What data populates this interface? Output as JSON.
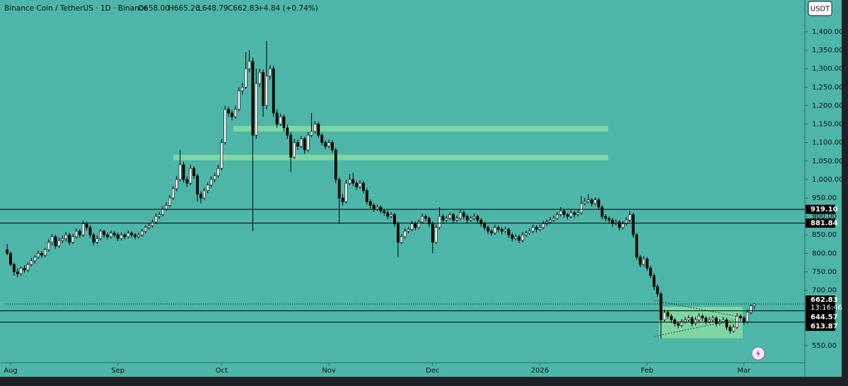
{
  "chart_data": {
    "type": "candlestick",
    "title": "Binance Coin / TetherUS · 1D · Binance",
    "ohlc_header": [
      "O658.00",
      "H665.26",
      "L648.79",
      "C662.83",
      "+4.84 (+0.74%)"
    ],
    "currency": "USDT",
    "ylim": [
      504,
      1486
    ],
    "yticks": [
      {
        "value": 550,
        "label": "550.00"
      },
      {
        "value": 600,
        "label": "600.00"
      },
      {
        "value": 650,
        "label": "650.00"
      },
      {
        "value": 700,
        "label": "700.00"
      },
      {
        "value": 750,
        "label": "750.00"
      },
      {
        "value": 800,
        "label": "800.00"
      },
      {
        "value": 850,
        "label": "850.00"
      },
      {
        "value": 900,
        "label": "900.00"
      },
      {
        "value": 950,
        "label": "950.00"
      },
      {
        "value": 1000,
        "label": "1,000.00"
      },
      {
        "value": 1050,
        "label": "1,050.00"
      },
      {
        "value": 1100,
        "label": "1,100.00"
      },
      {
        "value": 1150,
        "label": "1,150.00"
      },
      {
        "value": 1200,
        "label": "1,200.00"
      },
      {
        "value": 1250,
        "label": "1,250.00"
      },
      {
        "value": 1300,
        "label": "1,300.00"
      },
      {
        "value": 1350,
        "label": "1,350.00"
      },
      {
        "value": 1400,
        "label": "1,400.00"
      }
    ],
    "xlim": [
      -0.43,
      230.6
    ],
    "xticks": [
      {
        "value": 1,
        "label": "Aug"
      },
      {
        "value": 32,
        "label": "Sep"
      },
      {
        "value": 62,
        "label": "Oct"
      },
      {
        "value": 93,
        "label": "Nov"
      },
      {
        "value": 123,
        "label": "Dec"
      },
      {
        "value": 154,
        "label": "2026"
      },
      {
        "value": 185,
        "label": "Feb"
      },
      {
        "value": 213,
        "label": "Mar"
      }
    ],
    "levels": [
      {
        "value": 919.1,
        "label": "919.10"
      },
      {
        "value": 881.84,
        "label": "881.84"
      },
      {
        "value": 644.57,
        "label": "644.57"
      },
      {
        "value": 613.87,
        "label": "613.87"
      }
    ],
    "last_price": {
      "value": 662.83,
      "label": "662.83"
    },
    "countdown": "13:16:46",
    "zones": [
      {
        "low": 1130,
        "high": 1145
      },
      {
        "low": 1052,
        "high": 1067
      },
      {
        "low": 570,
        "high": 655
      }
    ],
    "up_color": "#ffffff",
    "down_color": "#000000",
    "candles": [
      [
        810,
        825,
        795,
        800
      ],
      [
        800,
        805,
        765,
        770
      ],
      [
        770,
        775,
        740,
        750
      ],
      [
        750,
        760,
        735,
        745
      ],
      [
        745,
        765,
        740,
        760
      ],
      [
        760,
        768,
        748,
        755
      ],
      [
        755,
        775,
        750,
        770
      ],
      [
        770,
        788,
        765,
        780
      ],
      [
        780,
        795,
        772,
        790
      ],
      [
        790,
        808,
        785,
        800
      ],
      [
        800,
        806,
        788,
        795
      ],
      [
        795,
        815,
        790,
        810
      ],
      [
        810,
        838,
        805,
        830
      ],
      [
        830,
        852,
        822,
        845
      ],
      [
        845,
        850,
        812,
        820
      ],
      [
        820,
        842,
        815,
        835
      ],
      [
        835,
        848,
        828,
        840
      ],
      [
        840,
        858,
        832,
        850
      ],
      [
        850,
        855,
        822,
        830
      ],
      [
        830,
        852,
        825,
        845
      ],
      [
        845,
        868,
        840,
        860
      ],
      [
        860,
        866,
        842,
        850
      ],
      [
        850,
        888,
        845,
        880
      ],
      [
        880,
        886,
        862,
        870
      ],
      [
        870,
        876,
        842,
        850
      ],
      [
        850,
        856,
        822,
        830
      ],
      [
        830,
        848,
        825,
        840
      ],
      [
        840,
        866,
        835,
        860
      ],
      [
        860,
        864,
        842,
        850
      ],
      [
        850,
        856,
        838,
        845
      ],
      [
        845,
        862,
        840,
        855
      ],
      [
        855,
        860,
        843,
        850
      ],
      [
        850,
        856,
        833,
        840
      ],
      [
        840,
        857,
        835,
        850
      ],
      [
        850,
        855,
        838,
        845
      ],
      [
        845,
        862,
        840,
        855
      ],
      [
        855,
        860,
        843,
        850
      ],
      [
        850,
        855,
        838,
        845
      ],
      [
        845,
        856,
        840,
        850
      ],
      [
        850,
        866,
        845,
        860
      ],
      [
        860,
        877,
        854,
        870
      ],
      [
        870,
        882,
        864,
        875
      ],
      [
        875,
        892,
        870,
        885
      ],
      [
        885,
        908,
        880,
        900
      ],
      [
        900,
        912,
        894,
        905
      ],
      [
        905,
        928,
        900,
        920
      ],
      [
        920,
        938,
        915,
        930
      ],
      [
        930,
        958,
        925,
        950
      ],
      [
        950,
        982,
        945,
        975
      ],
      [
        975,
        1010,
        968,
        1000
      ],
      [
        1000,
        1080,
        995,
        1040
      ],
      [
        1040,
        1048,
        992,
        1000
      ],
      [
        1000,
        1008,
        980,
        990
      ],
      [
        990,
        1040,
        985,
        1030
      ],
      [
        1030,
        1036,
        1002,
        1010
      ],
      [
        1010,
        1016,
        940,
        960
      ],
      [
        960,
        968,
        935,
        950
      ],
      [
        950,
        978,
        945,
        970
      ],
      [
        970,
        992,
        962,
        985
      ],
      [
        985,
        1008,
        978,
        1000
      ],
      [
        1000,
        1018,
        992,
        1010
      ],
      [
        1010,
        1040,
        1005,
        1030
      ],
      [
        1030,
        1110,
        1025,
        1100
      ],
      [
        1100,
        1200,
        1095,
        1190
      ],
      [
        1190,
        1198,
        1170,
        1180
      ],
      [
        1180,
        1188,
        1160,
        1170
      ],
      [
        1170,
        1200,
        1165,
        1190
      ],
      [
        1190,
        1250,
        1185,
        1240
      ],
      [
        1240,
        1262,
        1230,
        1250
      ],
      [
        1250,
        1345,
        1245,
        1300
      ],
      [
        1300,
        1350,
        1290,
        1320
      ],
      [
        1320,
        1330,
        860,
        1120
      ],
      [
        1120,
        1300,
        1110,
        1260
      ],
      [
        1260,
        1300,
        1250,
        1290
      ],
      [
        1290,
        1298,
        1170,
        1200
      ],
      [
        1200,
        1375,
        1190,
        1280
      ],
      [
        1280,
        1310,
        1270,
        1300
      ],
      [
        1300,
        1308,
        1170,
        1180
      ],
      [
        1180,
        1190,
        1140,
        1150
      ],
      [
        1150,
        1178,
        1145,
        1170
      ],
      [
        1170,
        1176,
        1130,
        1140
      ],
      [
        1140,
        1148,
        1110,
        1120
      ],
      [
        1120,
        1128,
        1020,
        1060
      ],
      [
        1060,
        1110,
        1055,
        1100
      ],
      [
        1100,
        1108,
        1080,
        1090
      ],
      [
        1090,
        1118,
        1085,
        1110
      ],
      [
        1110,
        1116,
        1070,
        1080
      ],
      [
        1080,
        1128,
        1075,
        1120
      ],
      [
        1120,
        1180,
        1115,
        1130
      ],
      [
        1130,
        1158,
        1125,
        1150
      ],
      [
        1150,
        1156,
        1112,
        1120
      ],
      [
        1120,
        1126,
        1092,
        1100
      ],
      [
        1100,
        1106,
        1082,
        1090
      ],
      [
        1090,
        1108,
        1085,
        1100
      ],
      [
        1100,
        1106,
        1072,
        1080
      ],
      [
        1080,
        1086,
        990,
        1000
      ],
      [
        1000,
        1006,
        880,
        950
      ],
      [
        950,
        960,
        930,
        940
      ],
      [
        940,
        1000,
        935,
        990
      ],
      [
        990,
        1015,
        985,
        1000
      ],
      [
        1000,
        1018,
        982,
        990
      ],
      [
        990,
        996,
        972,
        980
      ],
      [
        980,
        998,
        975,
        990
      ],
      [
        990,
        996,
        962,
        970
      ],
      [
        970,
        976,
        932,
        940
      ],
      [
        940,
        946,
        922,
        930
      ],
      [
        930,
        936,
        912,
        920
      ],
      [
        920,
        932,
        915,
        925
      ],
      [
        925,
        930,
        908,
        915
      ],
      [
        915,
        920,
        902,
        910
      ],
      [
        910,
        916,
        892,
        900
      ],
      [
        900,
        912,
        895,
        905
      ],
      [
        905,
        910,
        872,
        880
      ],
      [
        880,
        886,
        790,
        830
      ],
      [
        830,
        852,
        825,
        845
      ],
      [
        845,
        868,
        840,
        860
      ],
      [
        860,
        872,
        855,
        865
      ],
      [
        865,
        888,
        860,
        880
      ],
      [
        880,
        886,
        862,
        870
      ],
      [
        870,
        892,
        865,
        885
      ],
      [
        885,
        908,
        880,
        900
      ],
      [
        900,
        906,
        887,
        895
      ],
      [
        895,
        900,
        872,
        880
      ],
      [
        880,
        886,
        800,
        830
      ],
      [
        830,
        878,
        825,
        870
      ],
      [
        870,
        925,
        865,
        900
      ],
      [
        900,
        906,
        882,
        890
      ],
      [
        890,
        902,
        885,
        895
      ],
      [
        895,
        912,
        890,
        905
      ],
      [
        905,
        910,
        882,
        890
      ],
      [
        890,
        902,
        885,
        895
      ],
      [
        895,
        918,
        890,
        910
      ],
      [
        910,
        916,
        892,
        900
      ],
      [
        900,
        906,
        882,
        890
      ],
      [
        890,
        902,
        885,
        895
      ],
      [
        895,
        908,
        890,
        900
      ],
      [
        900,
        906,
        882,
        890
      ],
      [
        890,
        896,
        872,
        880
      ],
      [
        880,
        886,
        862,
        870
      ],
      [
        870,
        876,
        852,
        860
      ],
      [
        860,
        866,
        848,
        855
      ],
      [
        855,
        878,
        850,
        870
      ],
      [
        870,
        876,
        857,
        865
      ],
      [
        865,
        870,
        852,
        860
      ],
      [
        860,
        872,
        855,
        865
      ],
      [
        865,
        870,
        842,
        850
      ],
      [
        850,
        856,
        832,
        840
      ],
      [
        840,
        852,
        835,
        845
      ],
      [
        845,
        850,
        828,
        835
      ],
      [
        835,
        858,
        830,
        850
      ],
      [
        850,
        862,
        845,
        855
      ],
      [
        855,
        868,
        850,
        860
      ],
      [
        860,
        878,
        855,
        870
      ],
      [
        870,
        876,
        857,
        865
      ],
      [
        865,
        878,
        860,
        870
      ],
      [
        870,
        888,
        865,
        880
      ],
      [
        880,
        892,
        875,
        885
      ],
      [
        885,
        898,
        880,
        890
      ],
      [
        890,
        902,
        885,
        895
      ],
      [
        895,
        912,
        890,
        905
      ],
      [
        905,
        925,
        900,
        915
      ],
      [
        915,
        920,
        897,
        905
      ],
      [
        905,
        910,
        892,
        900
      ],
      [
        900,
        918,
        895,
        910
      ],
      [
        910,
        916,
        897,
        905
      ],
      [
        905,
        918,
        900,
        910
      ],
      [
        910,
        955,
        905,
        935
      ],
      [
        935,
        950,
        930,
        940
      ],
      [
        940,
        960,
        935,
        945
      ],
      [
        945,
        950,
        927,
        935
      ],
      [
        935,
        952,
        930,
        945
      ],
      [
        945,
        950,
        917,
        925
      ],
      [
        925,
        930,
        892,
        900
      ],
      [
        900,
        906,
        887,
        895
      ],
      [
        895,
        900,
        882,
        890
      ],
      [
        890,
        896,
        872,
        880
      ],
      [
        880,
        892,
        875,
        885
      ],
      [
        885,
        890,
        862,
        870
      ],
      [
        870,
        888,
        865,
        880
      ],
      [
        880,
        898,
        875,
        890
      ],
      [
        890,
        915,
        885,
        905
      ],
      [
        905,
        910,
        842,
        850
      ],
      [
        850,
        856,
        782,
        790
      ],
      [
        790,
        796,
        762,
        770
      ],
      [
        770,
        792,
        765,
        785
      ],
      [
        785,
        790,
        752,
        760
      ],
      [
        760,
        766,
        732,
        740
      ],
      [
        740,
        746,
        700,
        710
      ],
      [
        710,
        716,
        682,
        690
      ],
      [
        690,
        696,
        570,
        620
      ],
      [
        620,
        648,
        615,
        640
      ],
      [
        640,
        646,
        622,
        630
      ],
      [
        630,
        636,
        612,
        620
      ],
      [
        620,
        626,
        602,
        610
      ],
      [
        610,
        616,
        597,
        605
      ],
      [
        605,
        622,
        600,
        615
      ],
      [
        615,
        628,
        610,
        620
      ],
      [
        620,
        632,
        615,
        625
      ],
      [
        625,
        630,
        602,
        610
      ],
      [
        610,
        628,
        605,
        620
      ],
      [
        620,
        638,
        615,
        630
      ],
      [
        630,
        636,
        617,
        625
      ],
      [
        625,
        630,
        607,
        615
      ],
      [
        615,
        628,
        610,
        620
      ],
      [
        620,
        632,
        615,
        625
      ],
      [
        625,
        630,
        602,
        610
      ],
      [
        610,
        622,
        605,
        615
      ],
      [
        615,
        628,
        610,
        620
      ],
      [
        620,
        626,
        592,
        600
      ],
      [
        600,
        606,
        582,
        590
      ],
      [
        590,
        608,
        585,
        600
      ],
      [
        600,
        638,
        595,
        630
      ],
      [
        630,
        636,
        617,
        625
      ],
      [
        625,
        630,
        607,
        615
      ],
      [
        615,
        648,
        610,
        640
      ],
      [
        640,
        662,
        635,
        658
      ],
      [
        658,
        665.26,
        648.79,
        662.83
      ]
    ]
  }
}
